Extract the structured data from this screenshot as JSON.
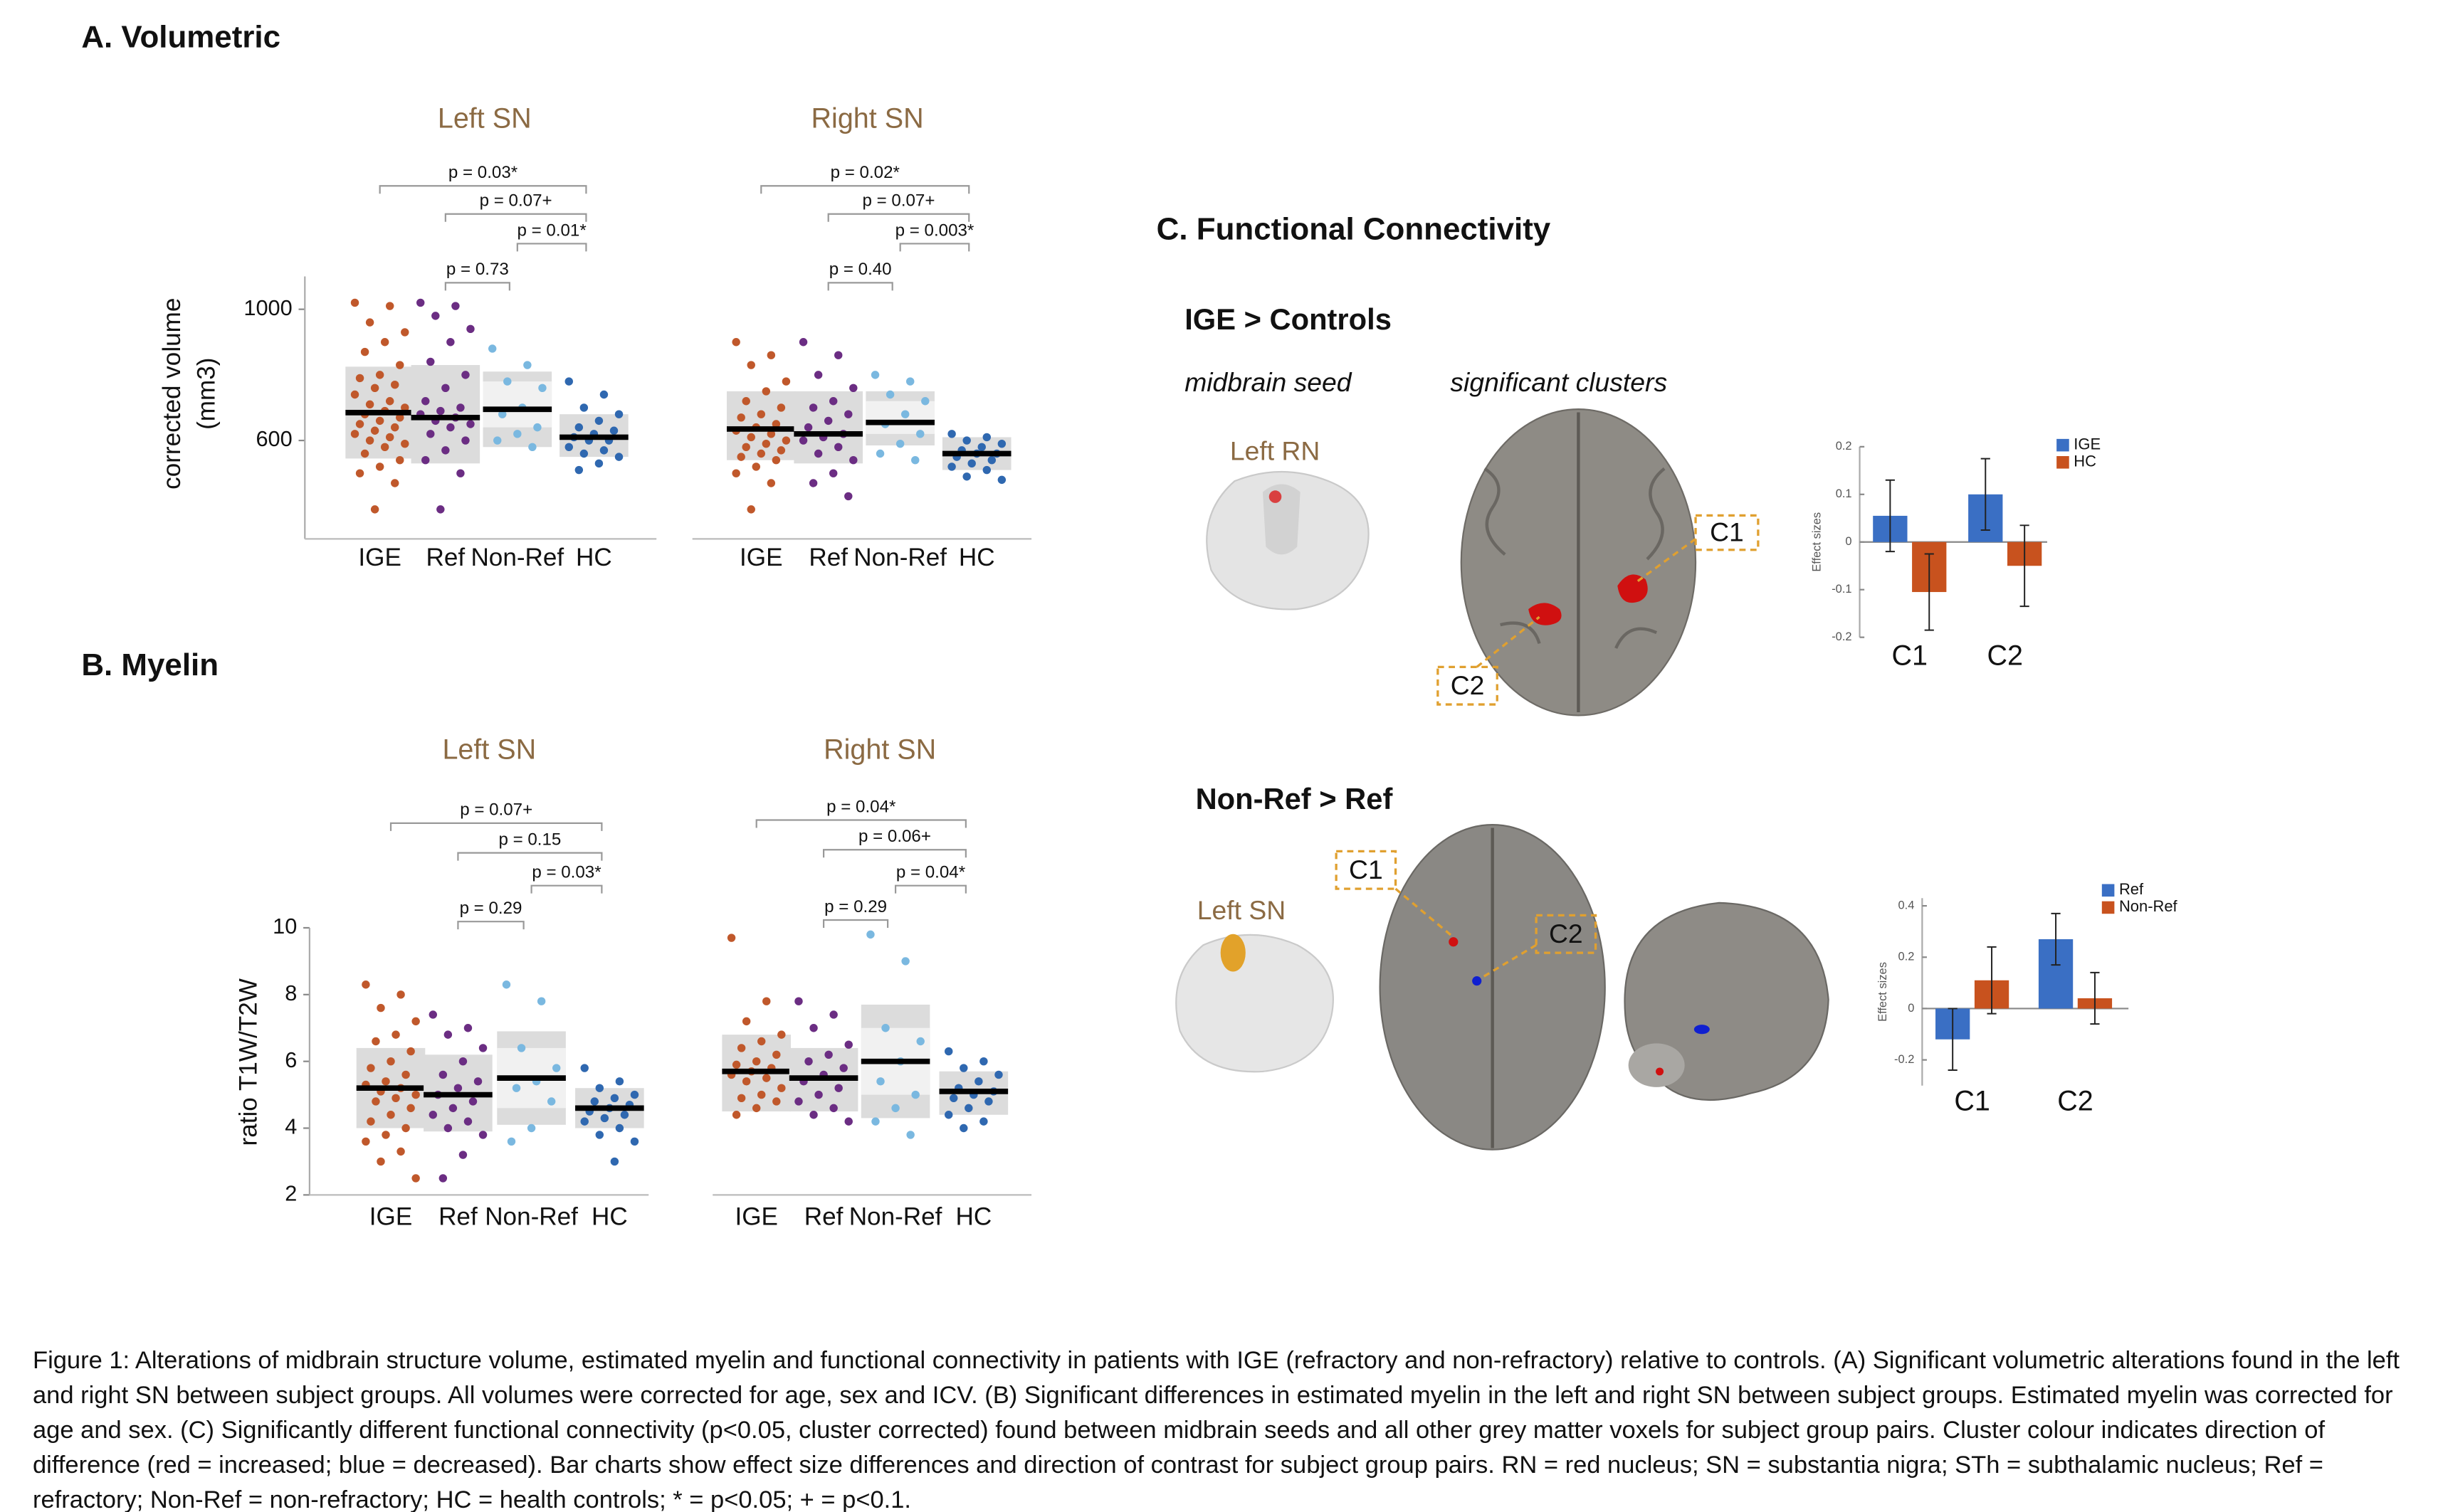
{
  "panels": {
    "a_title": "A. Volumetric",
    "b_title": "B. Myelin",
    "c_title": "C. Functional Connectivity"
  },
  "chart_data": [
    {
      "type": "dotbox",
      "title": "Left SN",
      "ylabel": [
        "corrected volume",
        "(mm3)"
      ],
      "categories": [
        "IGE",
        "Ref",
        "Non-Ref",
        "HC"
      ],
      "ylim": [
        300,
        1100
      ],
      "yticks": [
        600,
        1000
      ],
      "comparisons": [
        "p = 0.03*",
        "p = 0.07+",
        "p = 0.01*",
        "p = 0.73"
      ],
      "groups": [
        {
          "color": "#c0582b",
          "mean": 685,
          "box": [
            545,
            825
          ],
          "values": [
            1020,
            1010,
            960,
            930,
            900,
            870,
            830,
            800,
            790,
            770,
            760,
            740,
            720,
            710,
            700,
            690,
            680,
            670,
            660,
            650,
            640,
            630,
            620,
            610,
            600,
            590,
            580,
            560,
            540,
            520,
            500,
            470,
            390
          ]
        },
        {
          "color": "#6b2d83",
          "mean": 670,
          "box": [
            530,
            830
          ],
          "values": [
            1020,
            1010,
            980,
            940,
            900,
            840,
            800,
            760,
            720,
            700,
            690,
            680,
            670,
            660,
            650,
            640,
            620,
            600,
            570,
            540,
            500,
            390
          ]
        },
        {
          "color": "#7ab8e0",
          "mean": 695,
          "box": [
            580,
            810
          ],
          "ci": [
            640,
            780
          ],
          "values": [
            880,
            830,
            780,
            760,
            700,
            680,
            640,
            620,
            600,
            580
          ]
        },
        {
          "color": "#2f68b0",
          "mean": 610,
          "box": [
            550,
            680
          ],
          "values": [
            780,
            740,
            700,
            680,
            660,
            640,
            630,
            620,
            610,
            600,
            600,
            580,
            570,
            560,
            550,
            530,
            510
          ]
        }
      ]
    },
    {
      "type": "dotbox",
      "title": "Right SN",
      "categories": [
        "IGE",
        "Ref",
        "Non-Ref",
        "HC"
      ],
      "ylim": [
        300,
        1100
      ],
      "comparisons": [
        "p = 0.02*",
        "p = 0.07+",
        "p = 0.003*",
        "p = 0.40"
      ],
      "groups": [
        {
          "color": "#c0582b",
          "mean": 635,
          "box": [
            540,
            750
          ],
          "values": [
            900,
            860,
            830,
            780,
            750,
            720,
            700,
            680,
            670,
            650,
            640,
            630,
            620,
            610,
            600,
            590,
            580,
            570,
            560,
            550,
            540,
            520,
            500,
            470,
            390
          ]
        },
        {
          "color": "#6b2d83",
          "mean": 620,
          "box": [
            530,
            750
          ],
          "values": [
            900,
            860,
            800,
            760,
            720,
            700,
            680,
            660,
            640,
            620,
            610,
            600,
            580,
            560,
            540,
            500,
            470,
            430
          ]
        },
        {
          "color": "#7ab8e0",
          "mean": 655,
          "box": [
            585,
            750
          ],
          "ci": [
            620,
            720
          ],
          "values": [
            800,
            780,
            740,
            720,
            680,
            650,
            620,
            590,
            560,
            540
          ]
        },
        {
          "color": "#2f68b0",
          "mean": 560,
          "box": [
            510,
            610
          ],
          "values": [
            620,
            610,
            600,
            590,
            580,
            570,
            560,
            560,
            550,
            540,
            530,
            520,
            510,
            490,
            480
          ]
        }
      ]
    },
    {
      "type": "dotbox",
      "title": "Left SN",
      "ylabel": [
        "ratio T1W/T2W"
      ],
      "categories": [
        "IGE",
        "Ref",
        "Non-Ref",
        "HC"
      ],
      "ylim": [
        2,
        10
      ],
      "yticks": [
        2,
        4,
        6,
        8,
        10
      ],
      "comparisons": [
        "p = 0.07+",
        "p = 0.15",
        "p = 0.03*",
        "p = 0.29"
      ],
      "groups": [
        {
          "color": "#c0582b",
          "mean": 5.2,
          "box": [
            4.0,
            6.4
          ],
          "values": [
            8.3,
            8.0,
            7.6,
            7.2,
            6.8,
            6.6,
            6.3,
            6.0,
            5.8,
            5.6,
            5.4,
            5.3,
            5.2,
            5.1,
            5.0,
            4.9,
            4.8,
            4.6,
            4.4,
            4.2,
            4.0,
            3.8,
            3.6,
            3.3,
            3.0,
            2.5
          ]
        },
        {
          "color": "#6b2d83",
          "mean": 5.0,
          "box": [
            3.9,
            6.2
          ],
          "values": [
            7.4,
            7.0,
            6.8,
            6.4,
            6.0,
            5.6,
            5.4,
            5.2,
            5.0,
            4.8,
            4.6,
            4.4,
            4.2,
            4.0,
            3.8,
            3.2,
            2.5
          ]
        },
        {
          "color": "#7ab8e0",
          "mean": 5.5,
          "box": [
            4.1,
            6.9
          ],
          "ci": [
            4.6,
            6.4
          ],
          "values": [
            8.3,
            7.8,
            6.4,
            5.8,
            5.4,
            5.2,
            4.8,
            4.0,
            3.6
          ]
        },
        {
          "color": "#2f68b0",
          "mean": 4.6,
          "box": [
            4.0,
            5.2
          ],
          "values": [
            5.8,
            5.4,
            5.2,
            5.0,
            4.9,
            4.8,
            4.7,
            4.6,
            4.5,
            4.4,
            4.3,
            4.2,
            4.0,
            3.8,
            3.6,
            3.0
          ]
        }
      ]
    },
    {
      "type": "dotbox",
      "title": "Right SN",
      "categories": [
        "IGE",
        "Ref",
        "Non-Ref",
        "HC"
      ],
      "ylim": [
        2,
        10
      ],
      "comparisons": [
        "p = 0.04*",
        "p = 0.06+",
        "p = 0.04*",
        "p = 0.29"
      ],
      "groups": [
        {
          "color": "#c0582b",
          "mean": 5.7,
          "box": [
            4.5,
            6.8
          ],
          "values": [
            9.7,
            7.8,
            7.2,
            6.8,
            6.6,
            6.4,
            6.2,
            6.0,
            5.9,
            5.8,
            5.7,
            5.6,
            5.5,
            5.4,
            5.2,
            5.0,
            4.9,
            4.8,
            4.6,
            4.4
          ]
        },
        {
          "color": "#6b2d83",
          "mean": 5.5,
          "box": [
            4.5,
            6.4
          ],
          "values": [
            7.8,
            7.4,
            7.0,
            6.5,
            6.2,
            6.0,
            5.8,
            5.6,
            5.4,
            5.2,
            5.0,
            4.8,
            4.6,
            4.4,
            4.2
          ]
        },
        {
          "color": "#7ab8e0",
          "mean": 6.0,
          "box": [
            4.3,
            7.7
          ],
          "ci": [
            5.0,
            7.0
          ],
          "values": [
            9.8,
            9.0,
            7.0,
            6.6,
            6.0,
            5.4,
            5.0,
            4.6,
            4.2,
            3.8
          ]
        },
        {
          "color": "#2f68b0",
          "mean": 5.1,
          "box": [
            4.4,
            5.7
          ],
          "values": [
            6.3,
            6.0,
            5.8,
            5.6,
            5.4,
            5.2,
            5.1,
            5.0,
            4.9,
            4.8,
            4.6,
            4.4,
            4.2,
            4.0
          ]
        }
      ]
    },
    {
      "type": "bar",
      "ylabel": "Effect sizes",
      "categories": [
        "C1",
        "C2"
      ],
      "ylim": [
        -0.2,
        0.2
      ],
      "yticks": [
        -0.2,
        -0.1,
        0,
        0.1,
        0.2
      ],
      "series": [
        {
          "name": "IGE",
          "color": "#3a6fc4",
          "values": [
            0.055,
            0.1
          ],
          "errors": [
            0.075,
            0.075
          ]
        },
        {
          "name": "HC",
          "color": "#c8521e",
          "values": [
            -0.105,
            -0.05
          ],
          "errors": [
            0.08,
            0.085
          ]
        }
      ]
    },
    {
      "type": "bar",
      "ylabel": "Effect sizes",
      "categories": [
        "C1",
        "C2"
      ],
      "ylim": [
        -0.3,
        0.43
      ],
      "yticks": [
        -0.2,
        0,
        0.2,
        0.4
      ],
      "series": [
        {
          "name": "Ref",
          "color": "#3a6fc4",
          "values": [
            -0.12,
            0.27
          ],
          "errors": [
            0.12,
            0.1
          ]
        },
        {
          "name": "Non-Ref",
          "color": "#c8521e",
          "values": [
            0.11,
            0.04
          ],
          "errors": [
            0.13,
            0.1
          ]
        }
      ]
    }
  ],
  "connectivity": [
    {
      "title": "IGE > Controls",
      "seed_heading": "midbrain seed",
      "clusters_heading": "significant clusters",
      "seed": "Left RN",
      "clusters": [
        "C1",
        "C2"
      ]
    },
    {
      "title": "Non-Ref > Ref",
      "seed": "Left SN",
      "clusters": [
        "C1",
        "C2"
      ]
    }
  ],
  "caption": "Figure 1: Alterations of midbrain structure volume, estimated myelin and functional connectivity in patients with IGE (refractory and non-refractory) relative to controls. (A) Significant volumetric alterations found in the left and right SN between subject groups. All volumes were corrected for age, sex and ICV. (B) Significant differences in estimated myelin in the left and right SN between subject groups. Estimated myelin was corrected for age and sex. (C) Significantly different functional connectivity (p<0.05, cluster corrected) found between midbrain seeds and all other grey matter voxels for subject group pairs. Cluster colour indicates direction of difference (red = increased; blue = decreased). Bar charts show effect size differences and direction of contrast for subject group pairs. RN = red nucleus; SN = substantia nigra; STh = subthalamic nucleus; Ref = refractory; Non-Ref = non-refractory; HC = health controls; * = p<0.05; + = p<0.1."
}
